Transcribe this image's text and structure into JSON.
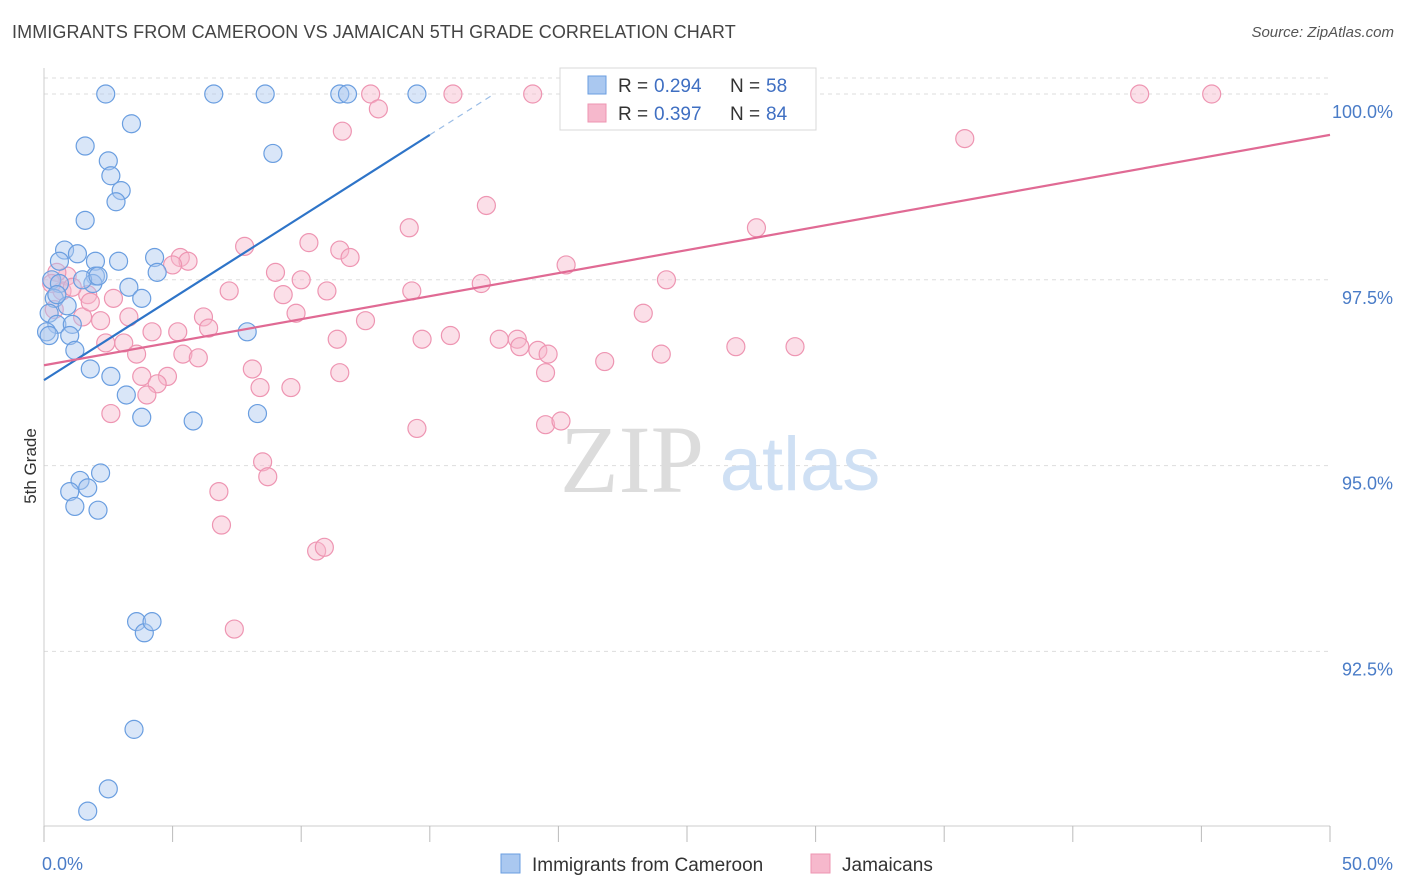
{
  "title": "IMMIGRANTS FROM CAMEROON VS JAMAICAN 5TH GRADE CORRELATION CHART",
  "source": "Source: ZipAtlas.com",
  "watermark": {
    "zip": "ZIP",
    "atlas": "atlas"
  },
  "colors": {
    "blue_fill": "#aac8f0",
    "blue_stroke": "#6a9ee0",
    "blue_line": "#2e74c8",
    "pink_fill": "#f6b8cc",
    "pink_stroke": "#ee95b2",
    "pink_line": "#e06a94",
    "grid": "#dddddd",
    "tick_text": "#4a7cc7"
  },
  "chart_data": {
    "type": "scatter",
    "title": "IMMIGRANTS FROM CAMEROON VS JAMAICAN 5TH GRADE CORRELATION CHART",
    "xlabel": "",
    "ylabel": "5th Grade",
    "xlim": [
      0,
      50
    ],
    "ylim": [
      90.15,
      100.35
    ],
    "x_tick_labels": [
      {
        "value": 0,
        "label": "0.0%"
      },
      {
        "value": 50,
        "label": "50.0%"
      }
    ],
    "y_tick_labels": [
      {
        "value": 100,
        "label": "100.0%"
      },
      {
        "value": 97.5,
        "label": "97.5%"
      },
      {
        "value": 95,
        "label": "95.0%"
      },
      {
        "value": 92.5,
        "label": "92.5%"
      }
    ],
    "legend": [
      {
        "series": "Immigrants from Cameroon",
        "r_label": "R =",
        "r_value": "0.294",
        "n_label": "N =",
        "n_value": "58"
      },
      {
        "series": "Jamaicans",
        "r_label": "R =",
        "r_value": "0.397",
        "n_label": "N =",
        "n_value": "84"
      }
    ],
    "series": [
      {
        "name": "Immigrants from Cameroon",
        "color": "blue",
        "trend": {
          "x0": 0,
          "y0": 96.15,
          "x1": 15,
          "y1": 99.45,
          "dash_to_x": 17.5
        },
        "points": [
          [
            2.4,
            100.0
          ],
          [
            6.6,
            100.0
          ],
          [
            8.6,
            100.0
          ],
          [
            11.5,
            100.0
          ],
          [
            11.8,
            100.0
          ],
          [
            14.5,
            100.0
          ],
          [
            3.4,
            99.6
          ],
          [
            1.6,
            99.3
          ],
          [
            2.5,
            99.1
          ],
          [
            8.9,
            99.2
          ],
          [
            2.6,
            98.9
          ],
          [
            3.0,
            98.7
          ],
          [
            2.8,
            98.55
          ],
          [
            1.6,
            98.3
          ],
          [
            0.8,
            97.9
          ],
          [
            1.3,
            97.85
          ],
          [
            0.6,
            97.75
          ],
          [
            2.0,
            97.75
          ],
          [
            2.9,
            97.75
          ],
          [
            4.3,
            97.8
          ],
          [
            4.4,
            97.6
          ],
          [
            2.0,
            97.55
          ],
          [
            1.9,
            97.45
          ],
          [
            0.3,
            97.5
          ],
          [
            0.6,
            97.45
          ],
          [
            1.5,
            97.5
          ],
          [
            3.3,
            97.4
          ],
          [
            3.8,
            97.25
          ],
          [
            0.4,
            97.25
          ],
          [
            0.9,
            97.15
          ],
          [
            0.2,
            97.05
          ],
          [
            0.5,
            96.9
          ],
          [
            1.1,
            96.9
          ],
          [
            0.1,
            96.8
          ],
          [
            0.2,
            96.75
          ],
          [
            1.0,
            96.75
          ],
          [
            7.9,
            96.8
          ],
          [
            1.2,
            96.55
          ],
          [
            1.8,
            96.3
          ],
          [
            2.6,
            96.2
          ],
          [
            3.2,
            95.95
          ],
          [
            3.8,
            95.65
          ],
          [
            5.8,
            95.6
          ],
          [
            8.3,
            95.7
          ],
          [
            2.2,
            94.9
          ],
          [
            1.4,
            94.8
          ],
          [
            1.7,
            94.7
          ],
          [
            1.0,
            94.65
          ],
          [
            1.2,
            94.45
          ],
          [
            2.1,
            94.4
          ],
          [
            3.6,
            92.9
          ],
          [
            3.9,
            92.75
          ],
          [
            4.2,
            92.9
          ],
          [
            3.5,
            91.45
          ],
          [
            2.5,
            90.65
          ],
          [
            1.7,
            90.35
          ],
          [
            0.5,
            97.3
          ],
          [
            2.1,
            97.55
          ]
        ]
      },
      {
        "name": "Jamaicans",
        "color": "pink",
        "trend": {
          "x0": 0,
          "y0": 96.35,
          "x1": 50,
          "y1": 99.45
        },
        "points": [
          [
            12.7,
            100.0
          ],
          [
            15.9,
            100.0
          ],
          [
            19.0,
            100.0
          ],
          [
            26.6,
            100.0
          ],
          [
            42.6,
            100.0
          ],
          [
            45.4,
            100.0
          ],
          [
            13.0,
            99.8
          ],
          [
            11.6,
            99.5
          ],
          [
            35.8,
            99.4
          ],
          [
            17.2,
            98.5
          ],
          [
            14.2,
            98.2
          ],
          [
            27.7,
            98.2
          ],
          [
            7.8,
            97.95
          ],
          [
            10.3,
            98.0
          ],
          [
            11.5,
            97.9
          ],
          [
            11.9,
            97.8
          ],
          [
            5.3,
            97.8
          ],
          [
            5.6,
            97.75
          ],
          [
            5.0,
            97.7
          ],
          [
            20.3,
            97.7
          ],
          [
            9.0,
            97.6
          ],
          [
            10.0,
            97.5
          ],
          [
            17.0,
            97.45
          ],
          [
            24.2,
            97.5
          ],
          [
            14.3,
            97.35
          ],
          [
            11.0,
            97.35
          ],
          [
            7.2,
            97.35
          ],
          [
            9.3,
            97.3
          ],
          [
            1.7,
            97.3
          ],
          [
            2.7,
            97.25
          ],
          [
            0.9,
            97.55
          ],
          [
            0.7,
            97.35
          ],
          [
            0.5,
            97.6
          ],
          [
            0.3,
            97.45
          ],
          [
            1.5,
            97.0
          ],
          [
            1.8,
            97.2
          ],
          [
            3.3,
            97.0
          ],
          [
            6.2,
            97.0
          ],
          [
            9.8,
            97.05
          ],
          [
            12.5,
            96.95
          ],
          [
            23.3,
            97.05
          ],
          [
            2.2,
            96.95
          ],
          [
            6.4,
            96.85
          ],
          [
            4.2,
            96.8
          ],
          [
            5.2,
            96.8
          ],
          [
            3.1,
            96.65
          ],
          [
            2.4,
            96.65
          ],
          [
            11.4,
            96.7
          ],
          [
            14.7,
            96.7
          ],
          [
            15.8,
            96.75
          ],
          [
            17.7,
            96.7
          ],
          [
            18.4,
            96.7
          ],
          [
            18.5,
            96.6
          ],
          [
            19.2,
            96.55
          ],
          [
            19.6,
            96.5
          ],
          [
            21.8,
            96.4
          ],
          [
            24.0,
            96.5
          ],
          [
            26.9,
            96.6
          ],
          [
            3.6,
            96.5
          ],
          [
            5.4,
            96.5
          ],
          [
            6.0,
            96.45
          ],
          [
            8.1,
            96.3
          ],
          [
            11.5,
            96.25
          ],
          [
            4.8,
            96.2
          ],
          [
            3.8,
            96.2
          ],
          [
            4.4,
            96.1
          ],
          [
            8.4,
            96.05
          ],
          [
            9.6,
            96.05
          ],
          [
            4.0,
            95.95
          ],
          [
            2.6,
            95.7
          ],
          [
            19.5,
            95.55
          ],
          [
            20.1,
            95.6
          ],
          [
            14.5,
            95.5
          ],
          [
            8.5,
            95.05
          ],
          [
            8.7,
            94.85
          ],
          [
            6.8,
            94.65
          ],
          [
            6.9,
            94.2
          ],
          [
            10.6,
            93.85
          ],
          [
            10.9,
            93.9
          ],
          [
            7.4,
            92.8
          ],
          [
            0.4,
            97.1
          ],
          [
            1.1,
            97.4
          ],
          [
            19.5,
            96.25
          ],
          [
            29.2,
            96.6
          ]
        ]
      }
    ]
  },
  "bottom_legend": [
    {
      "label": "Immigrants from Cameroon",
      "color": "blue"
    },
    {
      "label": "Jamaicans",
      "color": "pink"
    }
  ]
}
